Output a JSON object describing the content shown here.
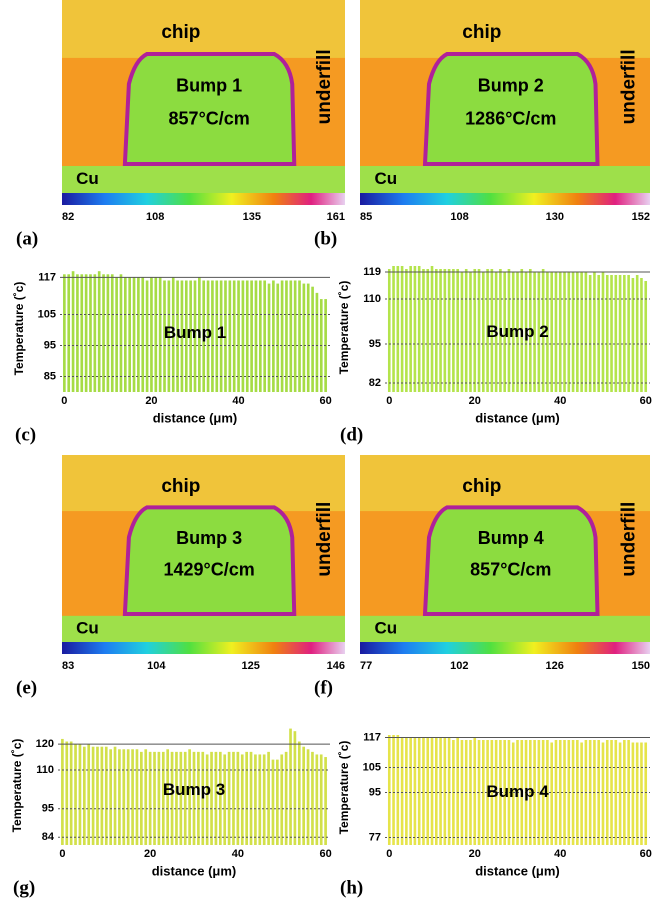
{
  "thermal_images": [
    {
      "panel_label": "(a)",
      "chip": "chip",
      "underfill": "underfill",
      "substrate": "Cu",
      "bump": "Bump 1",
      "gradient": "857°C/cm",
      "colorbar_ticks": [
        82,
        108,
        135,
        161
      ]
    },
    {
      "panel_label": "(b)",
      "chip": "chip",
      "underfill": "underfill",
      "substrate": "Cu",
      "bump": "Bump 2",
      "gradient": "1286°C/cm",
      "colorbar_ticks": [
        85,
        108,
        130,
        152
      ]
    },
    {
      "panel_label": "(e)",
      "chip": "chip",
      "underfill": "underfill",
      "substrate": "Cu",
      "bump": "Bump 3",
      "gradient": "1429°C/cm",
      "colorbar_ticks": [
        83,
        104,
        125,
        146
      ]
    },
    {
      "panel_label": "(f)",
      "chip": "chip",
      "underfill": "underfill",
      "substrate": "Cu",
      "bump": "Bump 4",
      "gradient": "857°C/cm",
      "colorbar_ticks": [
        77,
        102,
        126,
        150
      ]
    }
  ],
  "chart_data": [
    {
      "type": "bar",
      "panel_label": "(c)",
      "annotation": "Bump 1",
      "xlabel": "distance (μm)",
      "ylabel": "Temperature (˚c)",
      "color": "#a6dc45",
      "x": [
        0,
        1,
        2,
        3,
        4,
        5,
        6,
        7,
        8,
        9,
        10,
        11,
        12,
        13,
        14,
        15,
        16,
        17,
        18,
        19,
        20,
        21,
        22,
        23,
        24,
        25,
        26,
        27,
        28,
        29,
        30,
        31,
        32,
        33,
        34,
        35,
        36,
        37,
        38,
        39,
        40,
        41,
        42,
        43,
        44,
        45,
        46,
        47,
        48,
        49,
        50,
        51,
        52,
        53,
        54,
        55,
        56,
        57,
        58,
        59,
        60
      ],
      "values": [
        118,
        118,
        119,
        118,
        118,
        118,
        118,
        118,
        119,
        118,
        118,
        118,
        117,
        118,
        117,
        117,
        117,
        117,
        117,
        116,
        117,
        117,
        117,
        116,
        116,
        117,
        116,
        116,
        116,
        116,
        116,
        117,
        116,
        116,
        116,
        116,
        116,
        116,
        116,
        116,
        116,
        116,
        116,
        116,
        116,
        116,
        116,
        115,
        116,
        115,
        116,
        116,
        116,
        116,
        116,
        115,
        115,
        114,
        112,
        110,
        110
      ],
      "xlim": [
        -1,
        61
      ],
      "xticks": [
        0,
        20,
        40,
        60
      ],
      "ylim": [
        80,
        121
      ],
      "yticks": [
        85,
        95,
        105,
        117
      ],
      "grid": true
    },
    {
      "type": "bar",
      "panel_label": "(d)",
      "annotation": "Bump 2",
      "xlabel": "distance (μm)",
      "ylabel": "Temperature (˚c)",
      "color": "#b4e44c",
      "x": [
        0,
        1,
        2,
        3,
        4,
        5,
        6,
        7,
        8,
        9,
        10,
        11,
        12,
        13,
        14,
        15,
        16,
        17,
        18,
        19,
        20,
        21,
        22,
        23,
        24,
        25,
        26,
        27,
        28,
        29,
        30,
        31,
        32,
        33,
        34,
        35,
        36,
        37,
        38,
        39,
        40,
        41,
        42,
        43,
        44,
        45,
        46,
        47,
        48,
        49,
        50,
        51,
        52,
        53,
        54,
        55,
        56,
        57,
        58,
        59,
        60
      ],
      "values": [
        120,
        121,
        121,
        121,
        120,
        121,
        121,
        121,
        120,
        120,
        121,
        120,
        120,
        120,
        120,
        120,
        120,
        119,
        120,
        119,
        120,
        120,
        119,
        120,
        120,
        119,
        120,
        119,
        120,
        119,
        119,
        120,
        119,
        120,
        119,
        119,
        120,
        119,
        119,
        119,
        119,
        119,
        119,
        119,
        119,
        119,
        119,
        118,
        119,
        118,
        119,
        118,
        118,
        118,
        118,
        118,
        118,
        117,
        118,
        117,
        116
      ],
      "xlim": [
        -1,
        61
      ],
      "xticks": [
        0,
        20,
        40,
        60
      ],
      "ylim": [
        79,
        122
      ],
      "yticks": [
        82,
        95,
        110,
        119
      ],
      "grid": true
    },
    {
      "type": "bar",
      "panel_label": "(g)",
      "annotation": "Bump 3",
      "xlabel": "distance (μm)",
      "ylabel": "Temperature (˚c)",
      "color": "#d2e04a",
      "x": [
        0,
        1,
        2,
        3,
        4,
        5,
        6,
        7,
        8,
        9,
        10,
        11,
        12,
        13,
        14,
        15,
        16,
        17,
        18,
        19,
        20,
        21,
        22,
        23,
        24,
        25,
        26,
        27,
        28,
        29,
        30,
        31,
        32,
        33,
        34,
        35,
        36,
        37,
        38,
        39,
        40,
        41,
        42,
        43,
        44,
        45,
        46,
        47,
        48,
        49,
        50,
        51,
        52,
        53,
        54,
        55,
        56,
        57,
        58,
        59,
        60
      ],
      "values": [
        122,
        121,
        121,
        120,
        120,
        119,
        120,
        119,
        119,
        119,
        119,
        118,
        119,
        118,
        118,
        118,
        118,
        118,
        117,
        118,
        117,
        117,
        117,
        117,
        118,
        117,
        117,
        117,
        117,
        118,
        117,
        117,
        117,
        116,
        117,
        117,
        117,
        116,
        117,
        117,
        117,
        116,
        117,
        117,
        116,
        116,
        116,
        117,
        114,
        114,
        116,
        117,
        126,
        125,
        121,
        119,
        118,
        117,
        116,
        116,
        115
      ],
      "xlim": [
        -1,
        61
      ],
      "xticks": [
        0,
        20,
        40,
        60
      ],
      "ylim": [
        81,
        127
      ],
      "yticks": [
        84,
        95,
        110,
        120
      ],
      "grid": true
    },
    {
      "type": "bar",
      "panel_label": "(h)",
      "annotation": "Bump 4",
      "xlabel": "distance (μm)",
      "ylabel": "Temperature (˚c)",
      "color": "#e6e44a",
      "x": [
        0,
        1,
        2,
        3,
        4,
        5,
        6,
        7,
        8,
        9,
        10,
        11,
        12,
        13,
        14,
        15,
        16,
        17,
        18,
        19,
        20,
        21,
        22,
        23,
        24,
        25,
        26,
        27,
        28,
        29,
        30,
        31,
        32,
        33,
        34,
        35,
        36,
        37,
        38,
        39,
        40,
        41,
        42,
        43,
        44,
        45,
        46,
        47,
        48,
        49,
        50,
        51,
        52,
        53,
        54,
        55,
        56,
        57,
        58,
        59,
        60
      ],
      "values": [
        118,
        118,
        118,
        117,
        117,
        117,
        117,
        117,
        117,
        117,
        117,
        117,
        117,
        117,
        117,
        116,
        117,
        116,
        116,
        116,
        117,
        116,
        116,
        116,
        116,
        116,
        116,
        116,
        116,
        115,
        116,
        116,
        116,
        116,
        116,
        116,
        116,
        116,
        115,
        116,
        116,
        116,
        116,
        116,
        116,
        115,
        116,
        116,
        116,
        116,
        115,
        116,
        116,
        116,
        115,
        116,
        116,
        115,
        115,
        115,
        115
      ],
      "xlim": [
        -1,
        61
      ],
      "xticks": [
        0,
        20,
        40,
        60
      ],
      "ylim": [
        74,
        120
      ],
      "yticks": [
        77,
        95,
        105,
        117
      ],
      "grid": true
    }
  ]
}
